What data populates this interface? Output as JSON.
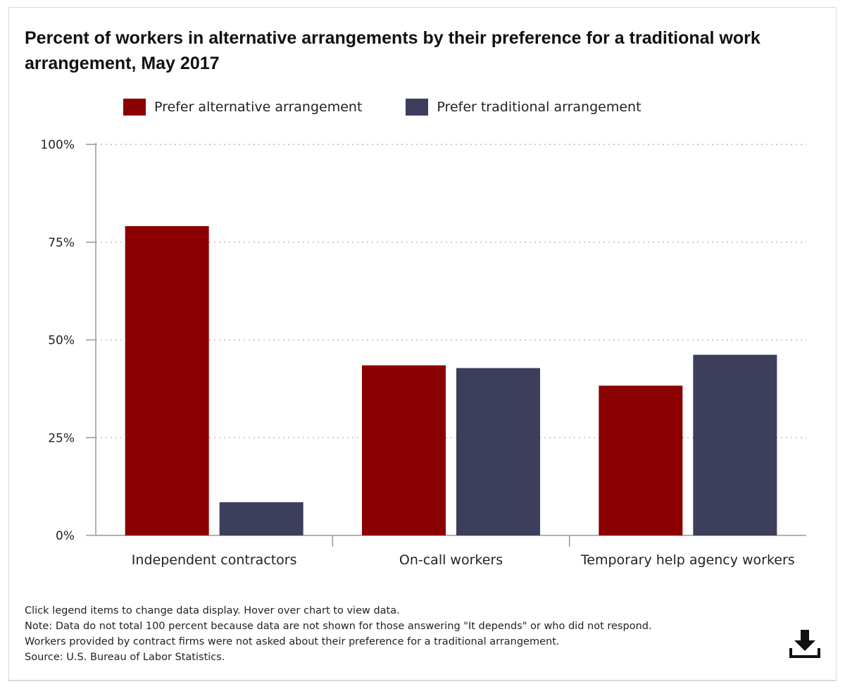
{
  "chart_data": {
    "type": "bar",
    "title": "Percent of workers in alternative arrangements by their preference for a traditional work arrangement, May 2017",
    "categories": [
      "Independent contractors",
      "On-call workers",
      "Temporary help agency workers"
    ],
    "series": [
      {
        "name": "Prefer alternative arrangement",
        "color": "#8b0000",
        "values": [
          79.1,
          43.5,
          38.3
        ]
      },
      {
        "name": "Prefer traditional arrangement",
        "color": "#3d3d5c",
        "values": [
          8.5,
          42.8,
          46.2
        ]
      }
    ],
    "ylim": [
      0,
      100
    ],
    "yticks": [
      0,
      25,
      50,
      75,
      100
    ],
    "ytick_labels": [
      "0%",
      "25%",
      "50%",
      "75%",
      "100%"
    ],
    "grid": true,
    "legend_position": "top"
  },
  "notes": {
    "instruction": "Click legend items to change data display. Hover over chart to view data.",
    "note": "Note: Data do not total 100 percent because data are not shown for those answering \"It depends\" or who did not respond.",
    "note2": "Workers provided by contract firms were not asked about their preference for a traditional arrangement.",
    "source": "Source: U.S. Bureau of Labor Statistics."
  },
  "icons": {
    "download": "download-icon"
  }
}
